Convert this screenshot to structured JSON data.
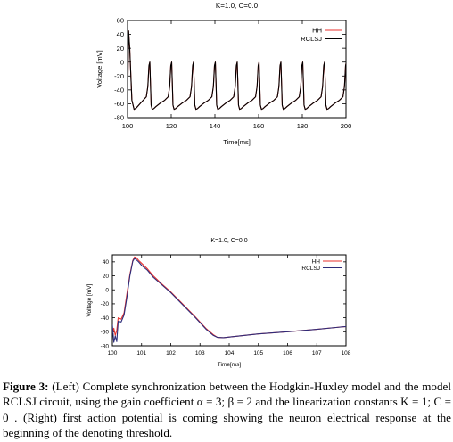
{
  "chart_data": [
    {
      "type": "line",
      "title": "K=1.0, C=0.0",
      "xlabel": "Time[ms]",
      "ylabel": "Voltage [mV]",
      "xlim": [
        100,
        200
      ],
      "ylim": [
        -80,
        60
      ],
      "xticks": [
        "100",
        "120",
        "140",
        "160",
        "180",
        "200"
      ],
      "yticks": [
        "60",
        "40",
        "20",
        "0",
        "-20",
        "-40",
        "-60",
        "-80"
      ],
      "grid": false,
      "legend": "top-right",
      "series": [
        {
          "name": "HH",
          "color": "#e8322e",
          "x": [
            100,
            100.5,
            101,
            102,
            103,
            104,
            106,
            108.6,
            109.3,
            109.8,
            110.2,
            110.5,
            110.8,
            111.3,
            112,
            113,
            115,
            117,
            118.6,
            119.3,
            119.8,
            120.2,
            120.5,
            120.8,
            121.3,
            122,
            123,
            125,
            127,
            128.6,
            129.3,
            129.8,
            130.2,
            130.5,
            130.8,
            131.3,
            132,
            133,
            135,
            137,
            138.6,
            139.3,
            139.8,
            140.2,
            140.5,
            140.8,
            141.3,
            142,
            143,
            145,
            147,
            148.6,
            149.3,
            149.8,
            150.2,
            150.5,
            150.8,
            151.3,
            152,
            153,
            155,
            157,
            158.6,
            159.3,
            159.8,
            160.2,
            160.5,
            160.8,
            161.3,
            162,
            163,
            165,
            167,
            168.6,
            169.3,
            169.8,
            170.2,
            170.5,
            170.8,
            171.3,
            172,
            173,
            175,
            177,
            178.6,
            179.3,
            179.8,
            180.2,
            180.5,
            180.8,
            181.3,
            182,
            183,
            185,
            187,
            188.6,
            189.3,
            189.8,
            190.2,
            190.5,
            190.8,
            191.3,
            192,
            193,
            195,
            197,
            198.6,
            199.3,
            199.8,
            200
          ],
          "y": [
            -60,
            45,
            20,
            -55,
            -68,
            -66,
            -59,
            -50,
            -35,
            -5,
            0,
            -30,
            -62,
            -68,
            -67,
            -64,
            -59,
            -55,
            -50,
            -35,
            -5,
            0,
            -30,
            -62,
            -68,
            -67,
            -64,
            -59,
            -55,
            -50,
            -35,
            -5,
            0,
            -30,
            -62,
            -68,
            -67,
            -64,
            -59,
            -55,
            -50,
            -35,
            -5,
            0,
            -30,
            -62,
            -68,
            -67,
            -64,
            -59,
            -55,
            -50,
            -35,
            -5,
            0,
            -30,
            -62,
            -68,
            -67,
            -64,
            -59,
            -55,
            -50,
            -35,
            -5,
            0,
            -30,
            -62,
            -68,
            -67,
            -64,
            -59,
            -55,
            -50,
            -35,
            -5,
            0,
            -30,
            -62,
            -68,
            -67,
            -64,
            -59,
            -55,
            -50,
            -35,
            -5,
            0,
            -30,
            -62,
            -68,
            -67,
            -64,
            -59,
            -55,
            -50,
            -35,
            -5,
            0,
            -30,
            -62,
            -68,
            -67,
            -64,
            -59,
            -55,
            -50,
            -35,
            -5,
            -2
          ]
        },
        {
          "name": "RCLSJ",
          "color": "#000000",
          "x": [
            100,
            100.5,
            101,
            102,
            103,
            104,
            106,
            108.6,
            109.3,
            109.8,
            110.2,
            110.5,
            110.8,
            111.3,
            112,
            113,
            115,
            117,
            118.6,
            119.3,
            119.8,
            120.2,
            120.5,
            120.8,
            121.3,
            122,
            123,
            125,
            127,
            128.6,
            129.3,
            129.8,
            130.2,
            130.5,
            130.8,
            131.3,
            132,
            133,
            135,
            137,
            138.6,
            139.3,
            139.8,
            140.2,
            140.5,
            140.8,
            141.3,
            142,
            143,
            145,
            147,
            148.6,
            149.3,
            149.8,
            150.2,
            150.5,
            150.8,
            151.3,
            152,
            153,
            155,
            157,
            158.6,
            159.3,
            159.8,
            160.2,
            160.5,
            160.8,
            161.3,
            162,
            163,
            165,
            167,
            168.6,
            169.3,
            169.8,
            170.2,
            170.5,
            170.8,
            171.3,
            172,
            173,
            175,
            177,
            178.6,
            179.3,
            179.8,
            180.2,
            180.5,
            180.8,
            181.3,
            182,
            183,
            185,
            187,
            188.6,
            189.3,
            189.8,
            190.2,
            190.5,
            190.8,
            191.3,
            192,
            193,
            195,
            197,
            198.6,
            199.3,
            199.8,
            200
          ],
          "y": [
            -60,
            45,
            20,
            -55,
            -68,
            -66,
            -59,
            -50,
            -35,
            -5,
            0,
            -30,
            -62,
            -68,
            -67,
            -64,
            -59,
            -55,
            -50,
            -35,
            -5,
            0,
            -30,
            -62,
            -68,
            -67,
            -64,
            -59,
            -55,
            -50,
            -35,
            -5,
            0,
            -30,
            -62,
            -68,
            -67,
            -64,
            -59,
            -55,
            -50,
            -35,
            -5,
            0,
            -30,
            -62,
            -68,
            -67,
            -64,
            -59,
            -55,
            -50,
            -35,
            -5,
            0,
            -30,
            -62,
            -68,
            -67,
            -64,
            -59,
            -55,
            -50,
            -35,
            -5,
            0,
            -30,
            -62,
            -68,
            -67,
            -64,
            -59,
            -55,
            -50,
            -35,
            -5,
            0,
            -30,
            -62,
            -68,
            -67,
            -64,
            -59,
            -55,
            -50,
            -35,
            -5,
            0,
            -30,
            -62,
            -68,
            -67,
            -64,
            -59,
            -55,
            -50,
            -35,
            -5,
            0,
            -30,
            -62,
            -68,
            -67,
            -64,
            -59,
            -55,
            -50,
            -35,
            -5,
            -2
          ]
        }
      ]
    },
    {
      "type": "line",
      "title": "K=1.0, C=0.0",
      "xlabel": "Time[ms]",
      "ylabel": "Voltage [mV]",
      "xlim": [
        100,
        108
      ],
      "ylim": [
        -80,
        50
      ],
      "xticks": [
        "100",
        "101",
        "102",
        "103",
        "104",
        "105",
        "106",
        "107",
        "108"
      ],
      "yticks": [
        "40",
        "20",
        "0",
        "-20",
        "-40",
        "-60",
        "-80"
      ],
      "grid": false,
      "legend": "top-right",
      "series": [
        {
          "name": "HH",
          "color": "#e8322e",
          "x": [
            100,
            100.05,
            100.1,
            100.15,
            100.2,
            100.3,
            100.4,
            100.5,
            100.6,
            100.7,
            100.76,
            100.82,
            100.9,
            101.0,
            101.2,
            101.4,
            101.7,
            102.0,
            102.4,
            102.8,
            103.2,
            103.45,
            103.6,
            103.8,
            104.0,
            105.0,
            106.0,
            107.0,
            108.0
          ],
          "y": [
            -62,
            -55,
            -65,
            -58,
            -40,
            -42,
            -33,
            -5,
            22,
            42,
            47,
            46,
            42,
            38,
            30,
            20,
            8,
            -3,
            -20,
            -37,
            -55,
            -64,
            -68,
            -68.5,
            -67.5,
            -63,
            -60,
            -56.5,
            -52.5
          ]
        },
        {
          "name": "RCLSJ",
          "color": "#2d2c7a",
          "x": [
            100,
            100.05,
            100.1,
            100.15,
            100.2,
            100.3,
            100.4,
            100.5,
            100.6,
            100.7,
            100.76,
            100.82,
            100.9,
            101.0,
            101.2,
            101.4,
            101.7,
            102.0,
            102.4,
            102.8,
            103.2,
            103.45,
            103.6,
            103.8,
            104.0,
            105.0,
            106.0,
            107.0,
            108.0
          ],
          "y": [
            -50,
            -75,
            -66,
            -74,
            -45,
            -46,
            -36,
            -10,
            20,
            41,
            45,
            43,
            40,
            35,
            28,
            18,
            7,
            -4,
            -21,
            -38,
            -56,
            -65,
            -68,
            -68.5,
            -67.5,
            -63,
            -60,
            -56.5,
            -52.5
          ]
        }
      ]
    }
  ],
  "caption": {
    "label": "Figure 3:",
    "text": " (Left) Complete synchronization between the Hodgkin-Huxley model and the model RCLSJ circuit, using the gain coefficient α = 3; β = 2 and the linearization constants K = 1; C = 0 . (Right) first action potential is coming showing the neuron electrical response at the beginning of the denoting threshold."
  }
}
